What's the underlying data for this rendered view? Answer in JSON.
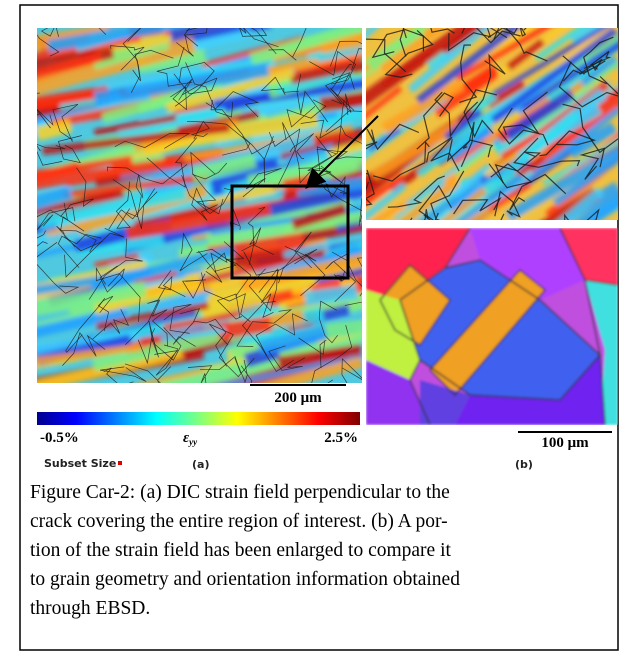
{
  "figure": {
    "scale_a": "200 μm",
    "scale_b": "100 μm",
    "colorbar": {
      "min_label": "-0.5%",
      "max_label": "2.5%",
      "symbol": "ε",
      "subscript": "yy"
    },
    "subset_size": "Subset Size",
    "panel_a": "(a)",
    "panel_b": "(b)",
    "caption": [
      "Figure Car-2: (a) DIC strain field perpendicular to the",
      "crack covering the entire region of interest. (b) A por-",
      "tion of the strain field has been enlarged to compare it",
      "to grain geometry and orientation information obtained",
      "through EBSD."
    ]
  }
}
